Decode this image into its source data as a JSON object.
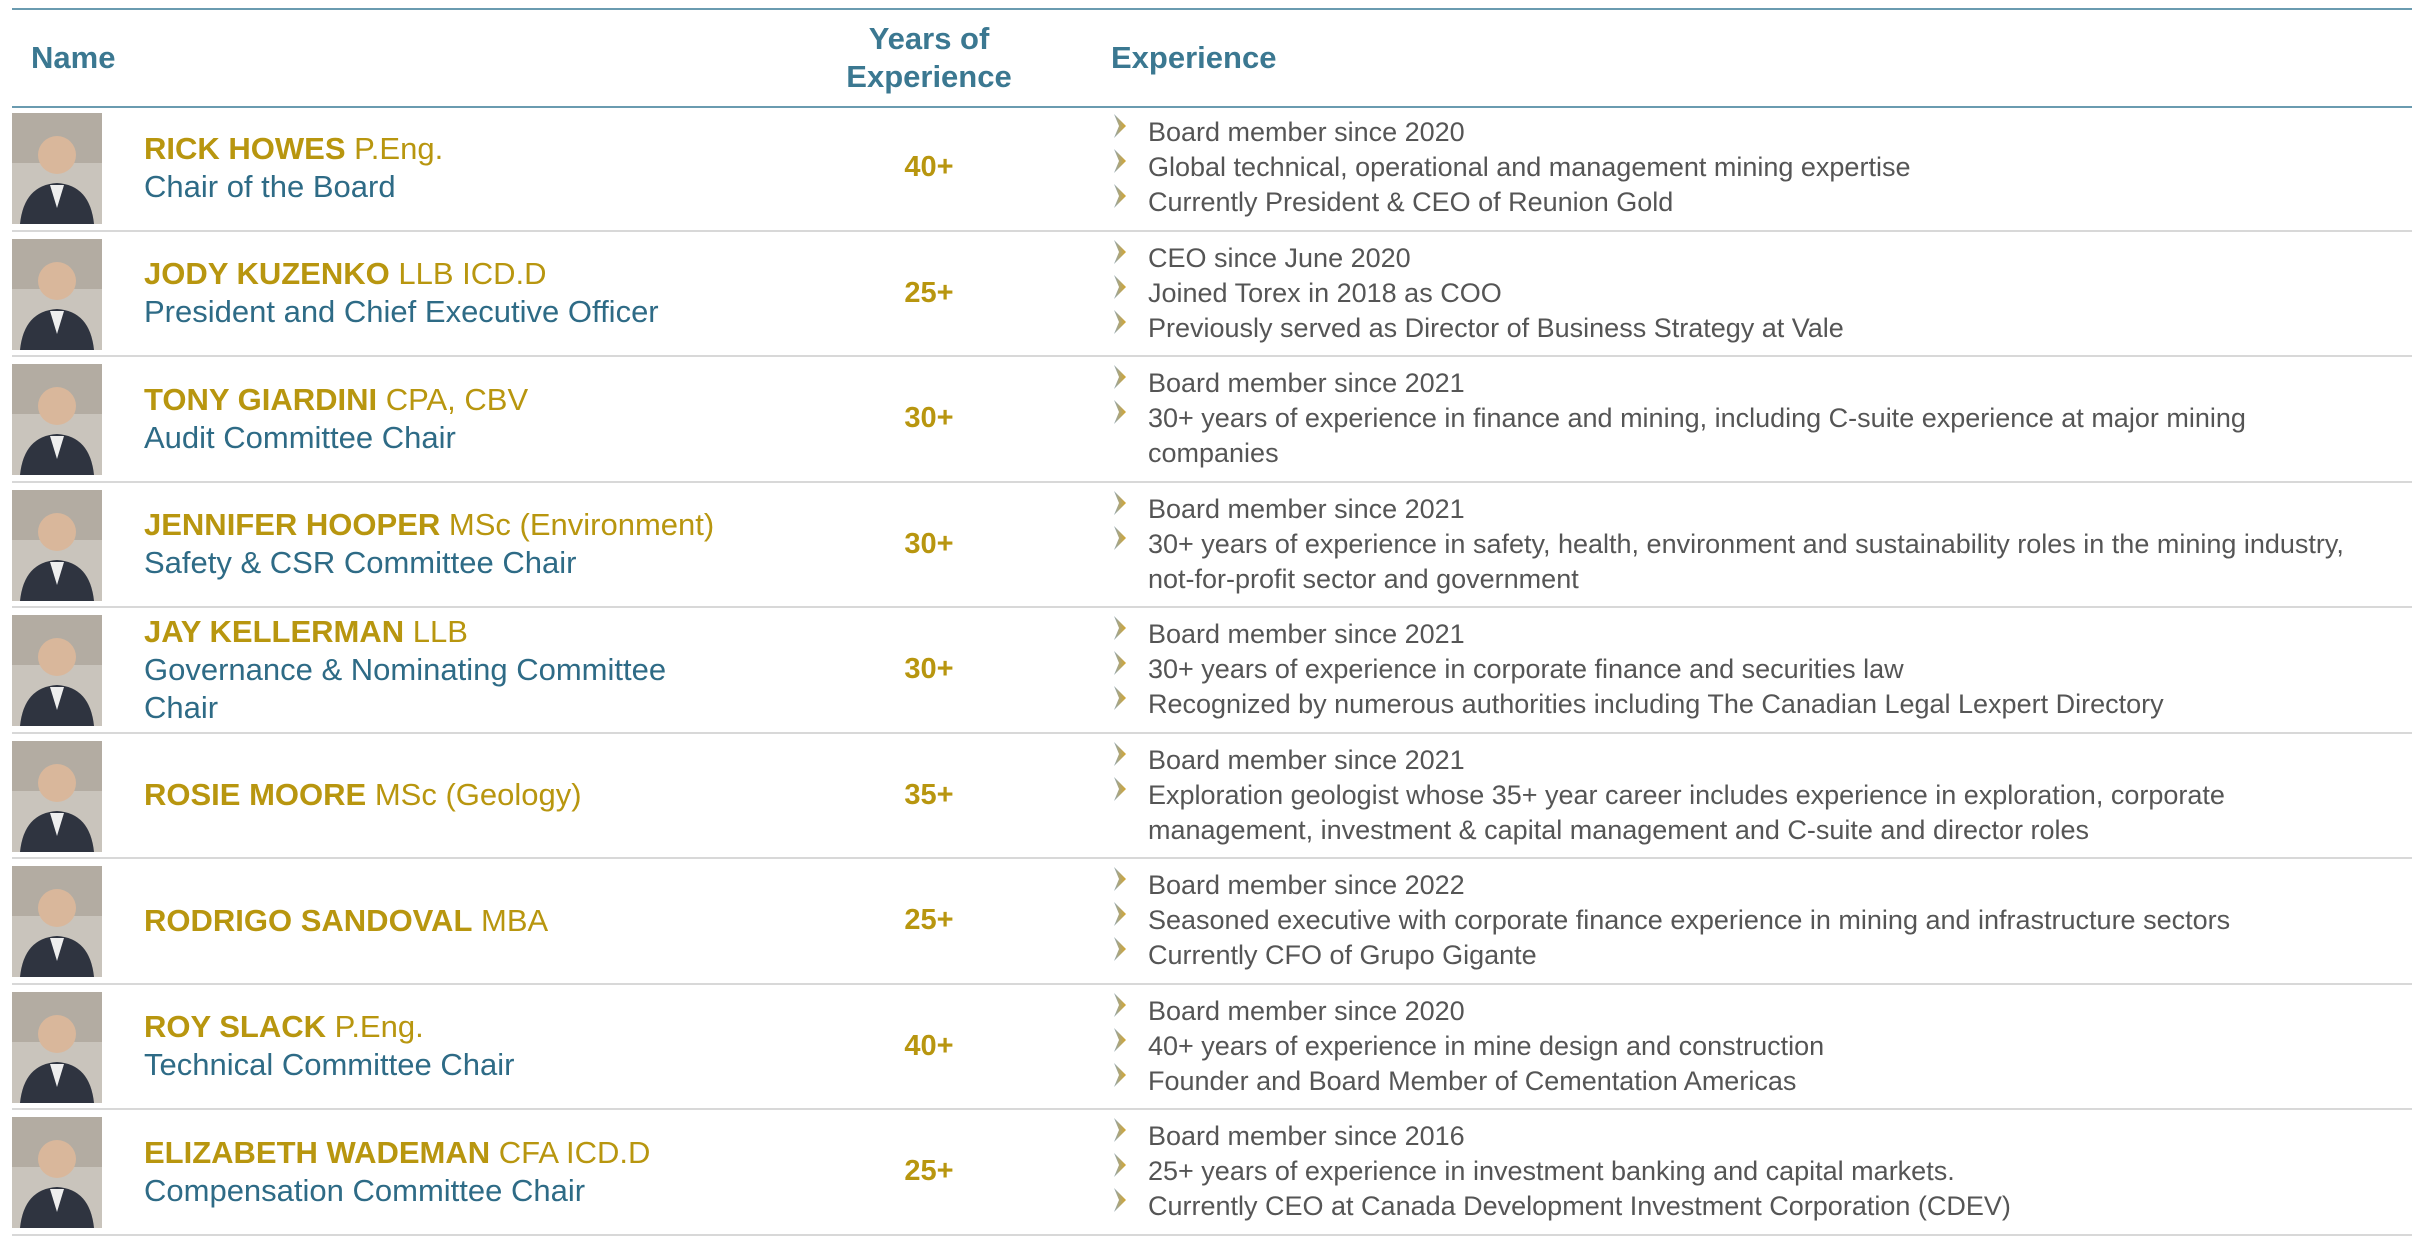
{
  "header": {
    "name": "Name",
    "years": "Years of Experience",
    "experience": "Experience"
  },
  "rows": [
    {
      "name": "RICK HOWES",
      "credentials": "P.Eng.",
      "role": "Chair of the Board",
      "years": "40+",
      "bullets": [
        "Board member since 2020",
        "Global technical, operational and management mining expertise",
        "Currently President & CEO of Reunion Gold"
      ]
    },
    {
      "name": "JODY KUZENKO",
      "credentials": "LLB ICD.D",
      "role": "President and Chief Executive Officer",
      "years": "25+",
      "bullets": [
        "CEO since June 2020",
        "Joined Torex in 2018 as COO",
        "Previously served as Director of Business Strategy at Vale"
      ]
    },
    {
      "name": "TONY GIARDINI",
      "credentials": "CPA, CBV",
      "role": "Audit Committee Chair",
      "years": "30+",
      "bullets": [
        "Board member since 2021",
        "30+ years of experience in finance and mining, including C-suite experience at major mining companies"
      ]
    },
    {
      "name": "JENNIFER HOOPER",
      "credentials": "MSc (Environment)",
      "role": "Safety & CSR Committee Chair",
      "years": "30+",
      "bullets": [
        "Board member since 2021",
        "30+ years of experience in safety, health, environment and sustainability roles in the mining industry, not-for-profit sector and government"
      ]
    },
    {
      "name": "JAY KELLERMAN",
      "credentials": "LLB",
      "role": "Governance & Nominating Committee Chair",
      "years": "30+",
      "bullets": [
        "Board member since 2021",
        "30+ years of experience in corporate finance and securities law",
        "Recognized by numerous authorities including The Canadian Legal Lexpert Directory"
      ]
    },
    {
      "name": "ROSIE MOORE",
      "credentials": "MSc (Geology)",
      "years": "35+",
      "bullets": [
        "Board member since 2021",
        "Exploration geologist whose 35+ year career includes experience in exploration, corporate management, investment & capital management and C-suite and director roles"
      ]
    },
    {
      "name": "RODRIGO SANDOVAL",
      "credentials": "MBA",
      "years": "25+",
      "bullets": [
        "Board member since 2022",
        "Seasoned executive with corporate finance experience in mining and infrastructure sectors",
        "Currently CFO of Grupo Gigante"
      ]
    },
    {
      "name": "ROY SLACK",
      "credentials": "P.Eng.",
      "role": "Technical Committee Chair",
      "years": "40+",
      "bullets": [
        "Board member since 2020",
        "40+ years of experience in mine design and construction",
        "Founder and Board Member of Cementation Americas"
      ]
    },
    {
      "name": "ELIZABETH WADEMAN",
      "credentials": "CFA ICD.D",
      "role": "Compensation Committee Chair",
      "years": "25+",
      "bullets": [
        "Board member since 2016",
        "25+ years of experience in investment banking and capital markets.",
        "Currently CEO at Canada Development Investment Corporation (CDEV)"
      ]
    }
  ]
}
